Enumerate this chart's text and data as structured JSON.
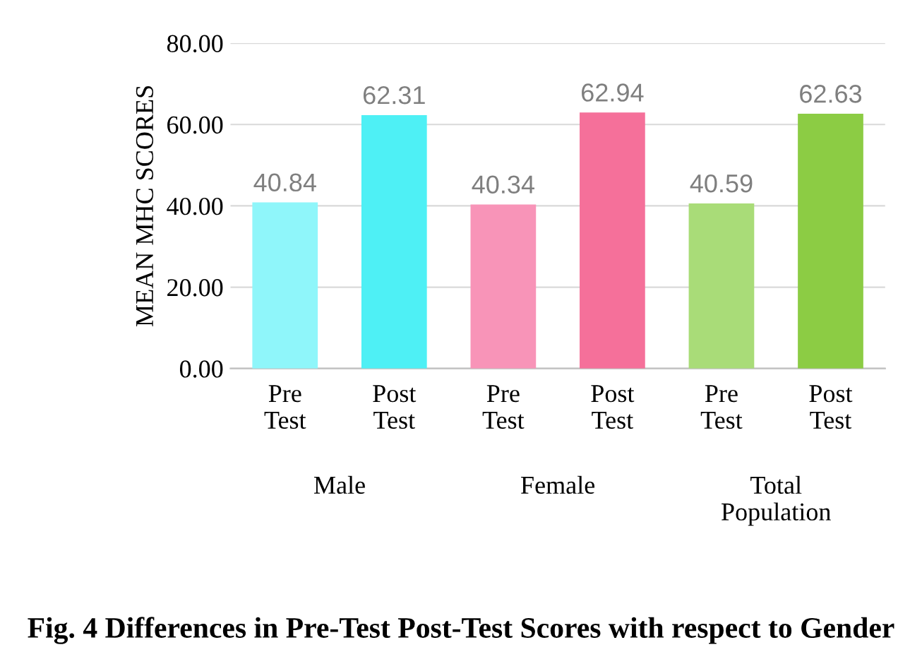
{
  "chart_data": {
    "type": "bar",
    "title": "Fig. 4 Differences in Pre-Test Post-Test Scores with respect to Gender",
    "ylabel": "MEAN MHC SCORES",
    "categories": [
      "Pre Test",
      "Post Test",
      "Pre Test",
      "Post Test",
      "Pre Test",
      "Post Test"
    ],
    "values": [
      40.84,
      62.31,
      40.34,
      62.94,
      40.59,
      62.63
    ],
    "colors": [
      "#8ff6fa",
      "#4ef0f5",
      "#f894b8",
      "#f5709a",
      "#a9dc78",
      "#8ccc44"
    ],
    "annotations": [
      "Male",
      "Female",
      "Total Population"
    ],
    "data_labels": true,
    "ylim": [
      0,
      80
    ],
    "yticks": [
      {
        "value": 0,
        "label": "0.00"
      },
      {
        "value": 20,
        "label": "20.00"
      },
      {
        "value": 40,
        "label": "40.00"
      },
      {
        "value": 60,
        "label": "60.00"
      },
      {
        "value": 80,
        "label": "80.00"
      }
    ],
    "grid": "y"
  }
}
